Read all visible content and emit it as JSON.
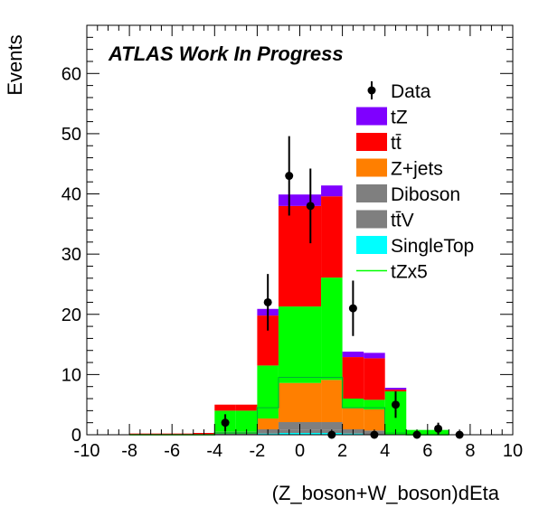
{
  "chart_data": {
    "type": "bar",
    "stacked": true,
    "title": "",
    "annotation": "ATLAS Work In Progress",
    "xlabel": "(Z_boson+W_boson)dEta",
    "ylabel": "Events",
    "xlim": [
      -10,
      10
    ],
    "ylim": [
      0,
      68
    ],
    "x_ticks": [
      "-10",
      "-8",
      "-6",
      "-4",
      "-2",
      "0",
      "2",
      "4",
      "6",
      "8",
      "10"
    ],
    "y_ticks": [
      "0",
      "10",
      "20",
      "30",
      "40",
      "50",
      "60"
    ],
    "bin_edges": [
      -8,
      -6,
      -5,
      -4,
      -3,
      -2,
      -1,
      0,
      1,
      2,
      3,
      4,
      5,
      6,
      7
    ],
    "grid": false,
    "legend_position": "top-right",
    "series": [
      {
        "name": "SingleTop",
        "key": "singletop",
        "color": "#00ffff",
        "values": [
          0,
          0,
          0,
          0,
          0,
          0.2,
          0.3,
          0.3,
          0.3,
          0.2,
          0,
          0,
          0,
          0
        ]
      },
      {
        "name": "tt̄V",
        "key": "ttv",
        "color": "#7f7f7f",
        "values": [
          0,
          0,
          0,
          0,
          0,
          0,
          0.5,
          0.5,
          0.5,
          0,
          0,
          0,
          0,
          0
        ]
      },
      {
        "name": "Diboson",
        "key": "diboson",
        "color": "#7f7f7f",
        "values": [
          0,
          0,
          0,
          0.5,
          0.5,
          0.7,
          1.3,
          1.3,
          1.3,
          0.7,
          0.7,
          0,
          0,
          0
        ]
      },
      {
        "name": "Z+jets",
        "key": "zjets",
        "color": "#ff7f00",
        "values": [
          0,
          0,
          0,
          0,
          0,
          1.8,
          6.5,
          6.5,
          7.0,
          3.5,
          3.5,
          0,
          0,
          0
        ]
      },
      {
        "name": "",
        "key": "green",
        "color": "#00ff00",
        "values": [
          0,
          0,
          0,
          3.5,
          3.5,
          8.8,
          12.7,
          12.7,
          17.0,
          1.6,
          1.6,
          7.2,
          0.8,
          0.8
        ]
      },
      {
        "name": "tt̄",
        "key": "ttbar",
        "color": "#ff0000",
        "values": [
          0.2,
          0.2,
          0.3,
          1.0,
          1.0,
          8.3,
          16.7,
          16.7,
          13.5,
          6.9,
          6.9,
          0.3,
          0,
          0
        ]
      },
      {
        "name": "tZ",
        "key": "tz",
        "color": "#7f00ff",
        "values": [
          0,
          0,
          0,
          0,
          0,
          1.1,
          1.9,
          1.9,
          1.8,
          0.9,
          0.9,
          0.3,
          0,
          0
        ]
      }
    ],
    "signal_x5": {
      "name": "tZx5",
      "color": "#00ff00",
      "values": [
        0,
        0,
        0,
        0.3,
        0.3,
        4.5,
        9.5,
        9.5,
        9.5,
        4.5,
        4.5,
        0.3,
        0,
        0
      ]
    },
    "data_points": {
      "name": "Data",
      "color": "#000000",
      "x": [
        -3.5,
        -1.5,
        -0.5,
        0.5,
        1.5,
        2.5,
        3.5,
        4.5,
        5.5,
        6.5,
        7.5
      ],
      "y": [
        2,
        22,
        43,
        38,
        0,
        21,
        0,
        5,
        0,
        1,
        0
      ],
      "err": [
        1.4,
        4.7,
        6.6,
        6.2,
        0,
        4.6,
        0,
        2.2,
        0,
        1.0,
        0
      ]
    },
    "legend": [
      {
        "label": "Data",
        "key": "data",
        "kind": "marker"
      },
      {
        "label": "tZ",
        "key": "tz",
        "kind": "box"
      },
      {
        "label": "tt̄",
        "key": "ttbar",
        "kind": "box"
      },
      {
        "label": "Z+jets",
        "key": "zjets",
        "kind": "box"
      },
      {
        "label": "Diboson",
        "key": "diboson",
        "kind": "box"
      },
      {
        "label": "tt̄V",
        "key": "ttv",
        "kind": "box"
      },
      {
        "label": "SingleTop",
        "key": "singletop",
        "kind": "box"
      },
      {
        "label": "tZx5",
        "key": "tzx5",
        "kind": "line"
      }
    ]
  }
}
